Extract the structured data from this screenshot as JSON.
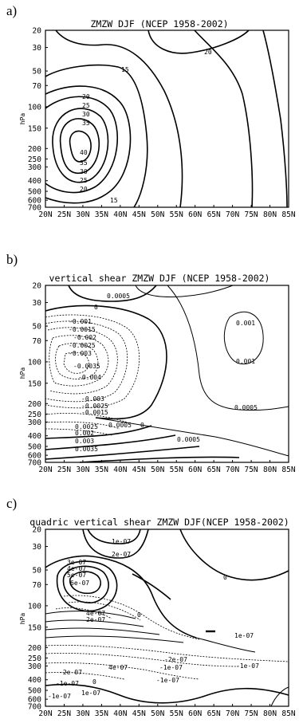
{
  "chart_data": [
    {
      "type": "contour",
      "panel_label": "a)",
      "title": "ZMZW DJF (NCEP 1958-2002)",
      "xlabel": "",
      "ylabel": "hPa",
      "x_ticks": [
        "20N",
        "25N",
        "30N",
        "35N",
        "40N",
        "45N",
        "50N",
        "55N",
        "60N",
        "65N",
        "70N",
        "75N",
        "80N",
        "85N"
      ],
      "y_ticks": [
        "20",
        "30",
        "50",
        "70",
        "100",
        "150",
        "200",
        "250",
        "300",
        "400",
        "500",
        "600",
        "700"
      ],
      "contour_labels": [
        "20",
        "15",
        "20",
        "25",
        "30",
        "35",
        "40",
        "35",
        "30",
        "25",
        "20",
        "15"
      ]
    },
    {
      "type": "contour",
      "panel_label": "b)",
      "title": "vertical shear ZMZW DJF (NCEP 1958-2002)",
      "xlabel": "",
      "ylabel": "hPa",
      "x_ticks": [
        "20N",
        "25N",
        "30N",
        "35N",
        "40N",
        "45N",
        "50N",
        "55N",
        "60N",
        "65N",
        "70N",
        "75N",
        "80N",
        "85N"
      ],
      "y_ticks": [
        "20",
        "30",
        "50",
        "70",
        "100",
        "150",
        "200",
        "250",
        "300",
        "400",
        "500",
        "600",
        "700"
      ],
      "contour_labels": [
        "0.0005",
        "0",
        "-0.001",
        "-0.0015",
        "-0.002",
        "-0.0025",
        "-0.003",
        "-0.0035",
        "-0.004",
        "-0.003",
        "-0.0025",
        "-0.0015",
        "0.0005",
        "0",
        "0.0025",
        "0.002",
        "0.003",
        "0.0035",
        "0.0005",
        "0.001",
        "0.001",
        "0.0005"
      ]
    },
    {
      "type": "contour",
      "panel_label": "c)",
      "title": "quadric vertical shear ZMZW DJF(NCEP 1958-2002)",
      "xlabel": "",
      "ylabel": "hPa",
      "x_ticks": [
        "20N",
        "25N",
        "30N",
        "35N",
        "40N",
        "45N",
        "50N",
        "55N",
        "60N",
        "65N",
        "70N",
        "75N",
        "80N",
        "85N"
      ],
      "y_ticks": [
        "20",
        "30",
        "50",
        "70",
        "100",
        "150",
        "200",
        "250",
        "300",
        "400",
        "500",
        "600",
        "700"
      ],
      "contour_labels": [
        "1e-07",
        "2e-07",
        "3e-07",
        "4e-07",
        "5e-07",
        "6e-07",
        "4e-07",
        "2e-07",
        "0",
        "0",
        "1e-07",
        "-1e-07",
        "-2e-07",
        "4e-07",
        "-1e-07",
        "-1e-07",
        "-2e-07",
        "-1e-07",
        "1e-07",
        "-1e-07",
        "0"
      ]
    }
  ]
}
